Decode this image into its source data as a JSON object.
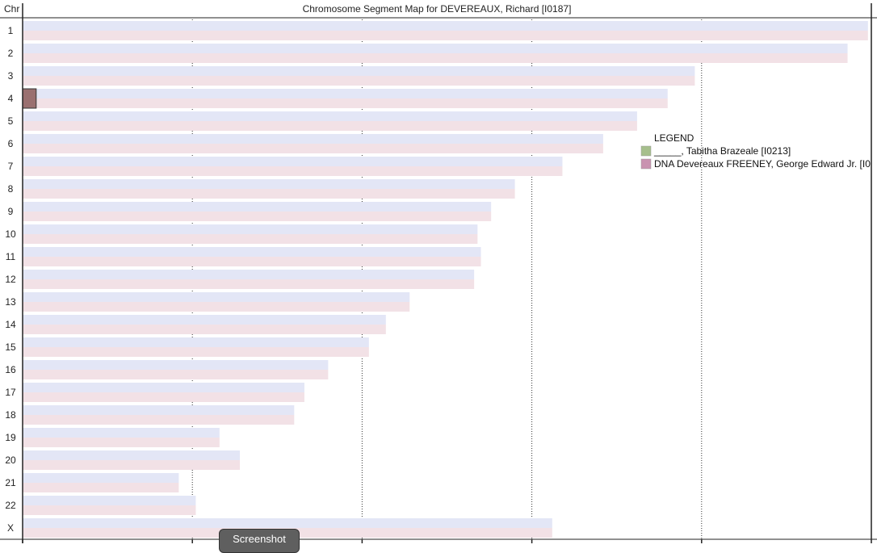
{
  "chart_data": {
    "type": "bar",
    "title": "Chromosome Segment Map for DEVEREAUX, Richard [I0187]",
    "axis_header": "Chr",
    "categories": [
      "1",
      "2",
      "3",
      "4",
      "5",
      "6",
      "7",
      "8",
      "9",
      "10",
      "11",
      "12",
      "13",
      "14",
      "15",
      "16",
      "17",
      "18",
      "19",
      "20",
      "21",
      "22",
      "X"
    ],
    "values": [
      249,
      243,
      198,
      190,
      181,
      171,
      159,
      145,
      138,
      134,
      135,
      133,
      114,
      107,
      102,
      90,
      83,
      80,
      58,
      64,
      46,
      51,
      156
    ],
    "xlim": [
      0,
      250
    ],
    "x_gridlines": [
      50,
      100,
      150,
      200
    ],
    "grid": true,
    "bar_colors": {
      "maternal": "#f2e1e6",
      "paternal": "#e3e6f6"
    },
    "segments": [
      {
        "chromosome": "4",
        "start": 0,
        "end": 4,
        "color": "#9a7070",
        "person": "DNA Devereaux FREENEY, George Edward Jr. [I0"
      }
    ],
    "legend": {
      "title": "LEGEND",
      "position": "right",
      "entries": [
        {
          "label": "_____, Tabitha Brazeale [I0213]",
          "color": "#a6bf8c"
        },
        {
          "label": "DNA Devereaux FREENEY, George Edward Jr. [I0",
          "color": "#c992b0"
        }
      ]
    }
  },
  "ui": {
    "screenshot_label": "Screenshot"
  }
}
